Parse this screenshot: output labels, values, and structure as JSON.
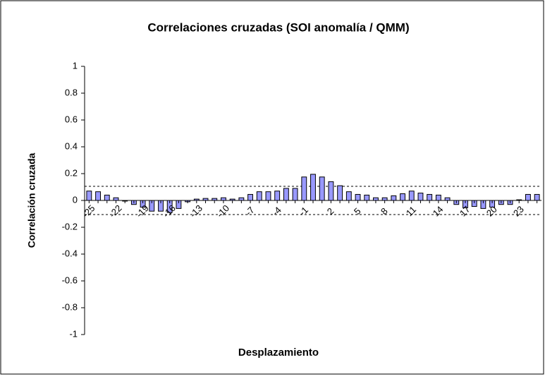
{
  "chart_data": {
    "type": "bar",
    "title": "Correlaciones cruzadas (SOI anomalía / QMM)",
    "xlabel": "Desplazamiento",
    "ylabel": "Correlación cruzada",
    "categories": [
      "-25",
      null,
      null,
      "-22",
      null,
      null,
      "-19",
      null,
      null,
      "-16",
      null,
      null,
      "-13",
      null,
      null,
      "-10",
      null,
      null,
      "-7",
      null,
      null,
      "-4",
      null,
      null,
      "-1",
      null,
      null,
      "2",
      null,
      null,
      "5",
      null,
      null,
      "8",
      null,
      null,
      "11",
      null,
      null,
      "14",
      null,
      null,
      "17",
      null,
      null,
      "20",
      null,
      null,
      "23",
      null,
      null
    ],
    "values": [
      0.07,
      0.065,
      0.04,
      0.02,
      -0.005,
      -0.03,
      -0.05,
      -0.08,
      -0.08,
      -0.09,
      -0.06,
      -0.01,
      0.01,
      0.015,
      0.015,
      0.02,
      0.01,
      0.02,
      0.045,
      0.065,
      0.065,
      0.07,
      0.09,
      0.09,
      0.175,
      0.195,
      0.175,
      0.14,
      0.11,
      0.065,
      0.045,
      0.04,
      0.02,
      0.02,
      0.035,
      0.05,
      0.07,
      0.055,
      0.045,
      0.04,
      0.02,
      -0.03,
      -0.055,
      -0.045,
      -0.06,
      -0.05,
      -0.03,
      -0.03,
      0.005,
      0.045,
      0.045
    ],
    "color": "#9999ff",
    "confidence_bounds": [
      0.105,
      -0.105
    ],
    "ylim": [
      -1,
      1
    ],
    "yticks": [
      -1,
      -0.8,
      -0.6,
      -0.4,
      -0.2,
      0,
      0.2,
      0.4,
      0.6,
      0.8,
      1
    ],
    "grid": false
  }
}
